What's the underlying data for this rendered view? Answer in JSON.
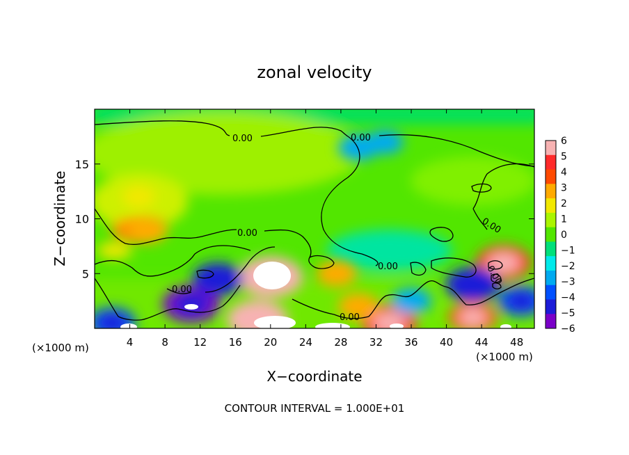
{
  "chart_data": {
    "type": "heatmap",
    "title": "zonal velocity",
    "xlabel": "X−coordinate",
    "ylabel": "Z−coordinate",
    "x_unit_left": "(×1000 m)",
    "x_unit_right": "(×1000 m)",
    "xlim": [
      0,
      50
    ],
    "ylim": [
      0,
      20
    ],
    "x_ticks": [
      4,
      8,
      12,
      16,
      20,
      24,
      28,
      32,
      36,
      40,
      44,
      48
    ],
    "y_ticks": [
      5,
      10,
      15
    ],
    "contour_level_label": "0.00",
    "contour_interval_text": "CONTOUR INTERVAL = 1.000E+01",
    "colorbar": {
      "range": [
        -6,
        6
      ],
      "ticks": [
        "6",
        "5",
        "4",
        "3",
        "2",
        "1",
        "0",
        "−1",
        "−2",
        "−3",
        "−4",
        "−5",
        "−6"
      ],
      "colors": [
        "#f7b2b2",
        "#ff2a2a",
        "#ff4a00",
        "#ffaa00",
        "#f2e800",
        "#aaf500",
        "#52e600",
        "#00e07a",
        "#00eaea",
        "#00aaf0",
        "#0050ff",
        "#1c1cd8",
        "#7a00c8"
      ]
    },
    "contour_labels_text": [
      "0.00",
      "0.00",
      "0.00",
      "0.00",
      "0.00",
      "0.00",
      "0.00",
      "0.00"
    ],
    "field_features": [
      {
        "x": 20,
        "z": 4.7,
        "value": 6.5
      },
      {
        "x": 18.5,
        "z": 0.8,
        "value": 6
      },
      {
        "x": 11,
        "z": 2.2,
        "value": -5.5
      },
      {
        "x": 14,
        "z": 4.5,
        "value": -4.5
      },
      {
        "x": 30,
        "z": 16.5,
        "value": -3
      },
      {
        "x": 33,
        "z": 17,
        "value": -2.5
      },
      {
        "x": 46.5,
        "z": 6,
        "value": 5
      },
      {
        "x": 43,
        "z": 4,
        "value": -5
      },
      {
        "x": 43,
        "z": 1,
        "value": 4
      },
      {
        "x": 27.5,
        "z": 5,
        "value": 3
      },
      {
        "x": 5,
        "z": 12,
        "value": 2
      },
      {
        "x": 6,
        "z": 9,
        "value": 3
      },
      {
        "x": 2,
        "z": 0.5,
        "value": -4
      },
      {
        "x": 33.5,
        "z": 0.5,
        "value": 5
      },
      {
        "x": 48.5,
        "z": 2.5,
        "value": -4
      },
      {
        "x": 30,
        "z": 2,
        "value": 3
      },
      {
        "x": 36,
        "z": 2.5,
        "value": -3
      }
    ]
  }
}
